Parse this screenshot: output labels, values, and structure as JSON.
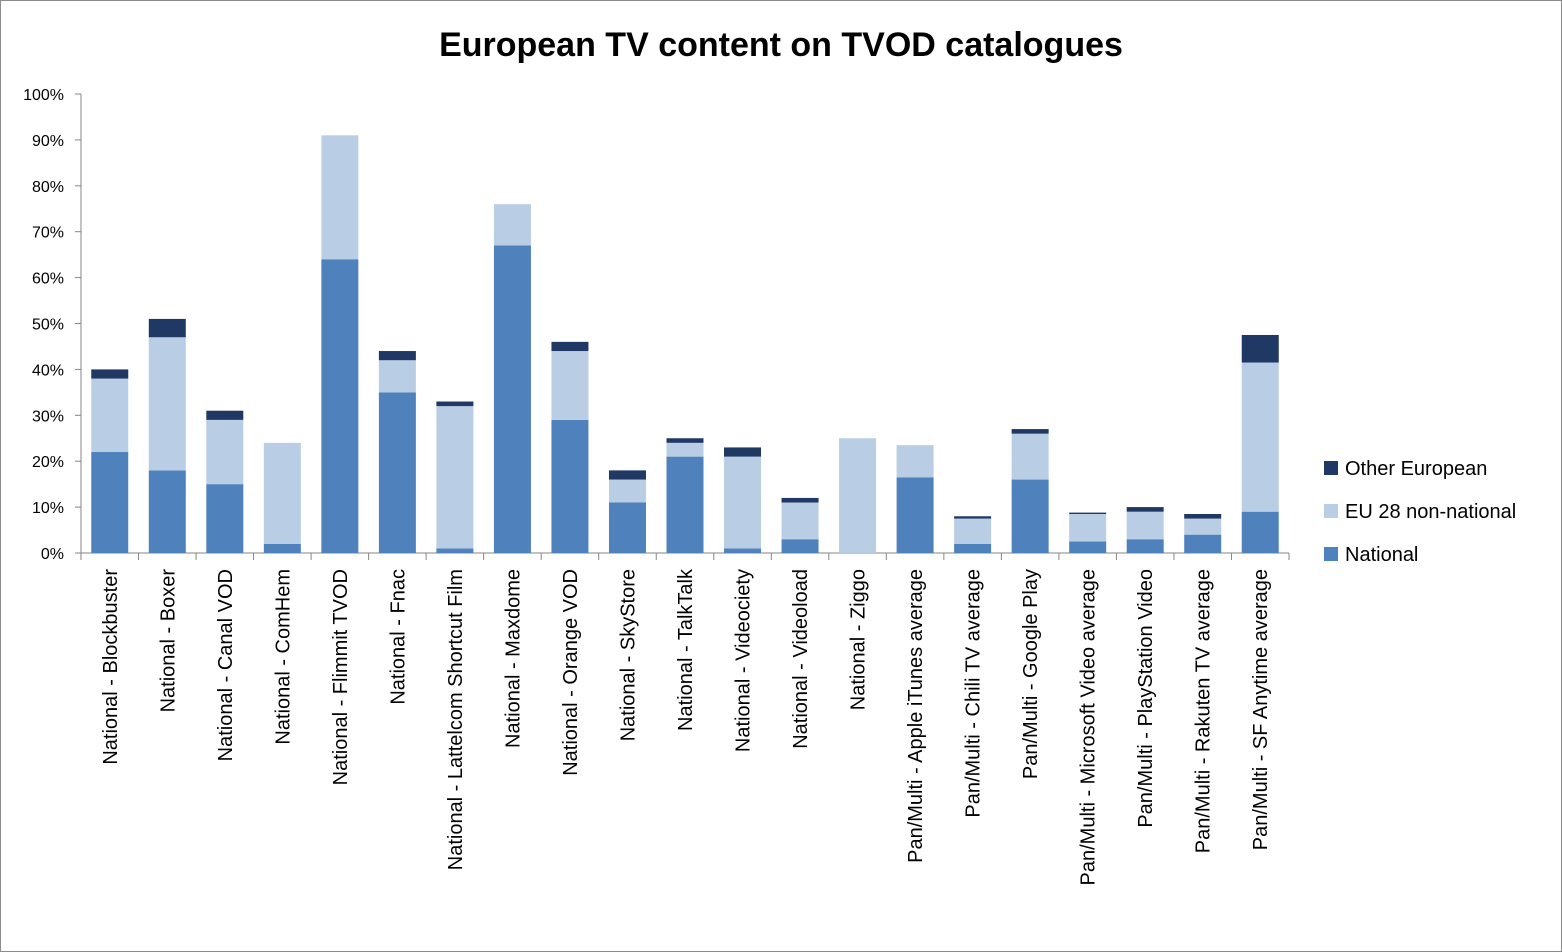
{
  "chart_data": {
    "type": "bar",
    "stacked": true,
    "title": "European TV content on TVOD catalogues",
    "xlabel": "",
    "ylabel": "",
    "ylim": [
      0,
      100
    ],
    "yticks": [
      0,
      10,
      20,
      30,
      40,
      50,
      60,
      70,
      80,
      90,
      100
    ],
    "ytick_suffix": "%",
    "grid": false,
    "legend_position": "right",
    "categories": [
      "National - Blockbuster",
      "National - Boxer",
      "National - Canal VOD",
      "National - ComHem",
      "National - Flimmit TVOD",
      "National - Fnac",
      "National - Lattelcom Shortcut Film",
      "National - Maxdome",
      "National - Orange VOD",
      "National - SkyStore",
      "National - TalkTalk",
      "National - Videociety",
      "National - Videoload",
      "National - Ziggo",
      "Pan/Multi - Apple iTunes average",
      "Pan/Multi - Chili TV average",
      "Pan/Multi - Google Play",
      "Pan/Multi - Microsoft Video average",
      "Pan/Multi - PlayStation Video",
      "Pan/Multi - Rakuten TV average",
      "Pan/Multi - SF Anytime average"
    ],
    "series": [
      {
        "name": "National",
        "color": "#4f81bd",
        "values": [
          22,
          18,
          15,
          2,
          64,
          35,
          1,
          67,
          29,
          11,
          21,
          1,
          3,
          0,
          16.5,
          2,
          16,
          2.5,
          3,
          4,
          9
        ]
      },
      {
        "name": "EU 28 non-national",
        "color": "#b9cde5",
        "values": [
          16,
          29,
          14,
          22,
          27,
          7,
          31,
          9,
          15,
          5,
          3,
          20,
          8,
          25,
          7,
          5.5,
          10,
          6,
          6,
          3.5,
          32.5
        ]
      },
      {
        "name": "Other European",
        "color": "#1f3864",
        "values": [
          2,
          4,
          2,
          0,
          0,
          2,
          1,
          0,
          2,
          2,
          1,
          2,
          1,
          0,
          0,
          0.5,
          1,
          0.3,
          1,
          1,
          6
        ]
      }
    ],
    "legend_order": [
      "Other European",
      "EU 28 non-national",
      "National"
    ]
  }
}
